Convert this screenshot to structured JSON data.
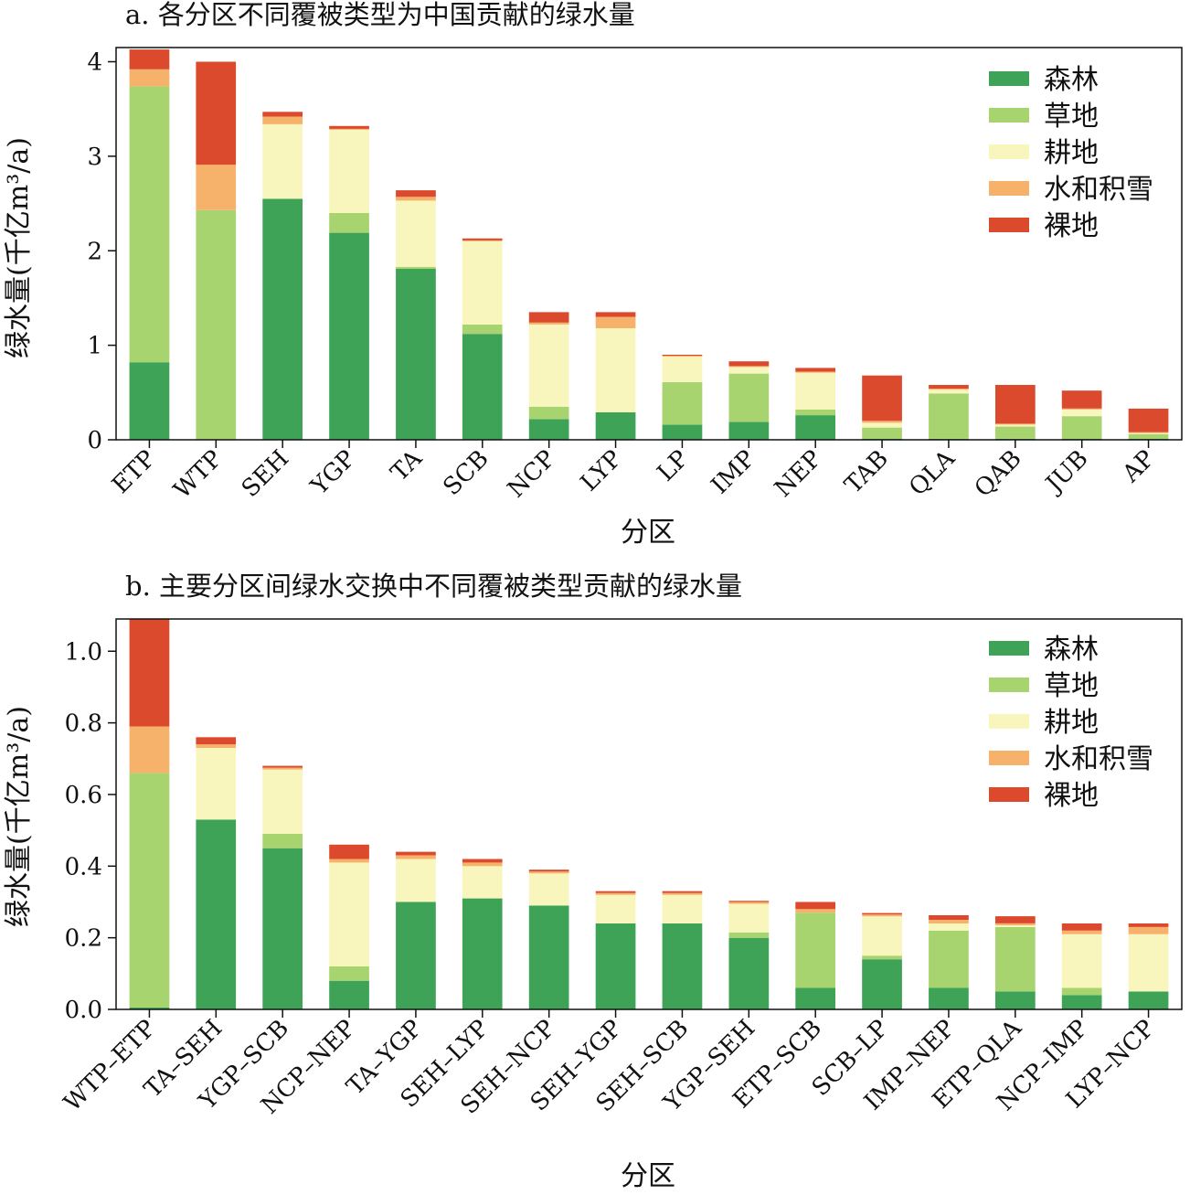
{
  "chart_data": [
    {
      "type": "bar",
      "stacked": true,
      "title": "a. 各分区不同覆被类型为中国贡献的绿水量",
      "xlabel": "分区",
      "ylabel": "绿水量(千亿m³/a)",
      "ylim": [
        0,
        4.15
      ],
      "yticks": [
        "0",
        "1",
        "2",
        "3",
        "4"
      ],
      "ytick_values": [
        0,
        1,
        2,
        3,
        4
      ],
      "legend_position": "top-right",
      "categories": [
        "ETP",
        "WTP",
        "SEH",
        "YGP",
        "TA",
        "SCB",
        "NCP",
        "LYP",
        "LP",
        "IMP",
        "NEP",
        "TAB",
        "QLA",
        "QAB",
        "JUB",
        "AP"
      ],
      "series": [
        {
          "name": "森林",
          "color": "#3ea356",
          "values": [
            0.82,
            0,
            2.55,
            2.19,
            1.81,
            1.12,
            0.22,
            0.29,
            0.16,
            0.19,
            0.26,
            0.01,
            0.01,
            0.01,
            0.01,
            0.01
          ]
        },
        {
          "name": "草地",
          "color": "#a8d46f",
          "values": [
            2.92,
            2.43,
            0,
            0.21,
            0.02,
            0.1,
            0.13,
            0,
            0.45,
            0.51,
            0.06,
            0.12,
            0.48,
            0.13,
            0.24,
            0.05
          ]
        },
        {
          "name": "耕地",
          "color": "#f9f6bd",
          "values": [
            0,
            0,
            0.79,
            0.88,
            0.7,
            0.88,
            0.87,
            0.89,
            0.27,
            0.07,
            0.39,
            0.05,
            0.04,
            0.02,
            0.07,
            0.01
          ]
        },
        {
          "name": "水和积雪",
          "color": "#f6b16a",
          "values": [
            0.18,
            0.48,
            0.08,
            0.01,
            0.04,
            0.01,
            0.02,
            0.12,
            0.01,
            0.01,
            0.01,
            0.02,
            0.01,
            0.01,
            0.01,
            0.01
          ]
        },
        {
          "name": "裸地",
          "color": "#dc4a2d",
          "values": [
            0.21,
            1.09,
            0.05,
            0.03,
            0.07,
            0.02,
            0.11,
            0.05,
            0.01,
            0.05,
            0.04,
            0.48,
            0.04,
            0.41,
            0.19,
            0.25
          ]
        }
      ]
    },
    {
      "type": "bar",
      "stacked": true,
      "title": "b. 主要分区间绿水交换中不同覆被类型贡献的绿水量",
      "xlabel": "分区",
      "ylabel": "绿水量(千亿m³/a)",
      "ylim": [
        0,
        1.09
      ],
      "yticks": [
        "0.0",
        "0.2",
        "0.4",
        "0.6",
        "0.8",
        "1.0"
      ],
      "ytick_values": [
        0,
        0.2,
        0.4,
        0.6,
        0.8,
        1.0
      ],
      "legend_position": "top-right",
      "categories": [
        "WTP–ETP",
        "TA–SEH",
        "YGP–SCB",
        "NCP–NEP",
        "TA–YGP",
        "SEH–LYP",
        "SEH–NCP",
        "SEH–YGP",
        "SEH–SCB",
        "YGP–SEH",
        "ETP–SCB",
        "SCB–LP",
        "IMP–NEP",
        "ETP–QLA",
        "NCP–IMP",
        "LYP–NCP"
      ],
      "series": [
        {
          "name": "森林",
          "color": "#3ea356",
          "values": [
            0.005,
            0.53,
            0.45,
            0.08,
            0.3,
            0.31,
            0.29,
            0.24,
            0.24,
            0.2,
            0.06,
            0.14,
            0.06,
            0.05,
            0.04,
            0.05
          ]
        },
        {
          "name": "草地",
          "color": "#a8d46f",
          "values": [
            0.655,
            0.0,
            0.04,
            0.04,
            0.0,
            0.0,
            0.0,
            0.0,
            0.0,
            0.015,
            0.21,
            0.01,
            0.16,
            0.18,
            0.02,
            0.0
          ]
        },
        {
          "name": "耕地",
          "color": "#f9f6bd",
          "values": [
            0.0,
            0.2,
            0.18,
            0.29,
            0.12,
            0.09,
            0.09,
            0.08,
            0.08,
            0.08,
            0.0,
            0.11,
            0.02,
            0.005,
            0.15,
            0.16
          ]
        },
        {
          "name": "水和积雪",
          "color": "#f6b16a",
          "values": [
            0.13,
            0.01,
            0.005,
            0.01,
            0.01,
            0.01,
            0.005,
            0.005,
            0.005,
            0.005,
            0.01,
            0.005,
            0.01,
            0.005,
            0.01,
            0.02
          ]
        },
        {
          "name": "裸地",
          "color": "#dc4a2d",
          "values": [
            0.3,
            0.02,
            0.005,
            0.04,
            0.01,
            0.01,
            0.005,
            0.005,
            0.005,
            0.003,
            0.02,
            0.004,
            0.013,
            0.02,
            0.02,
            0.01
          ]
        }
      ]
    }
  ]
}
